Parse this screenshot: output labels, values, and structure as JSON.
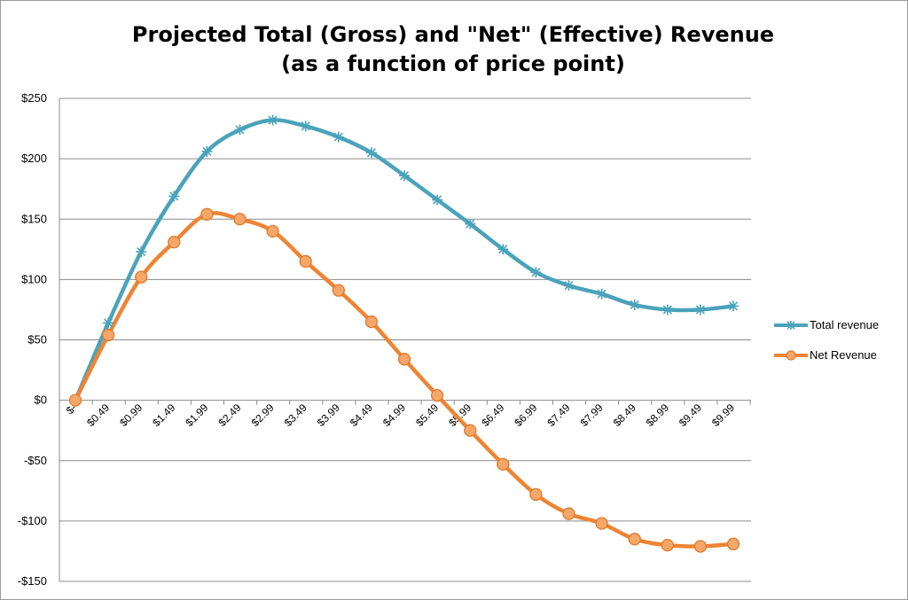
{
  "chart_data": {
    "type": "line",
    "title": "Projected Total (Gross) and \"Net\" (Effective) Revenue",
    "subtitle": "(as a function of price point)",
    "categories": [
      "$-",
      "$0.49",
      "$0.99",
      "$1.49",
      "$1.99",
      "$2.49",
      "$2.99",
      "$3.49",
      "$3.99",
      "$4.49",
      "$4.99",
      "$5.49",
      "$5.99",
      "$6.49",
      "$6.99",
      "$7.49",
      "$7.99",
      "$8.49",
      "$8.99",
      "$9.49",
      "$9.99"
    ],
    "ylim": [
      -150,
      250
    ],
    "yticks": [
      250,
      200,
      150,
      100,
      50,
      0,
      -50,
      -100,
      -150
    ],
    "ytick_labels": [
      "$250",
      "$200",
      "$150",
      "$100",
      "$50",
      "$0",
      "-$50",
      "-$100",
      "-$150"
    ],
    "grid": true,
    "legend_position": "right",
    "series": [
      {
        "name": "Total revenue",
        "color": "#4aa3bb",
        "marker": "star",
        "values": [
          0,
          64,
          123,
          169,
          206,
          224,
          232,
          227,
          218,
          205,
          186,
          166,
          146,
          125,
          106,
          95,
          88,
          79,
          75,
          75,
          78
        ]
      },
      {
        "name": "Net Revenue",
        "color": "#ee8433",
        "marker": "circle",
        "values": [
          0,
          54,
          102,
          131,
          154,
          150,
          140,
          115,
          91,
          65,
          34,
          4,
          -25,
          -53,
          -78,
          -94,
          -102,
          -115,
          -120,
          -121,
          -119
        ]
      }
    ]
  }
}
